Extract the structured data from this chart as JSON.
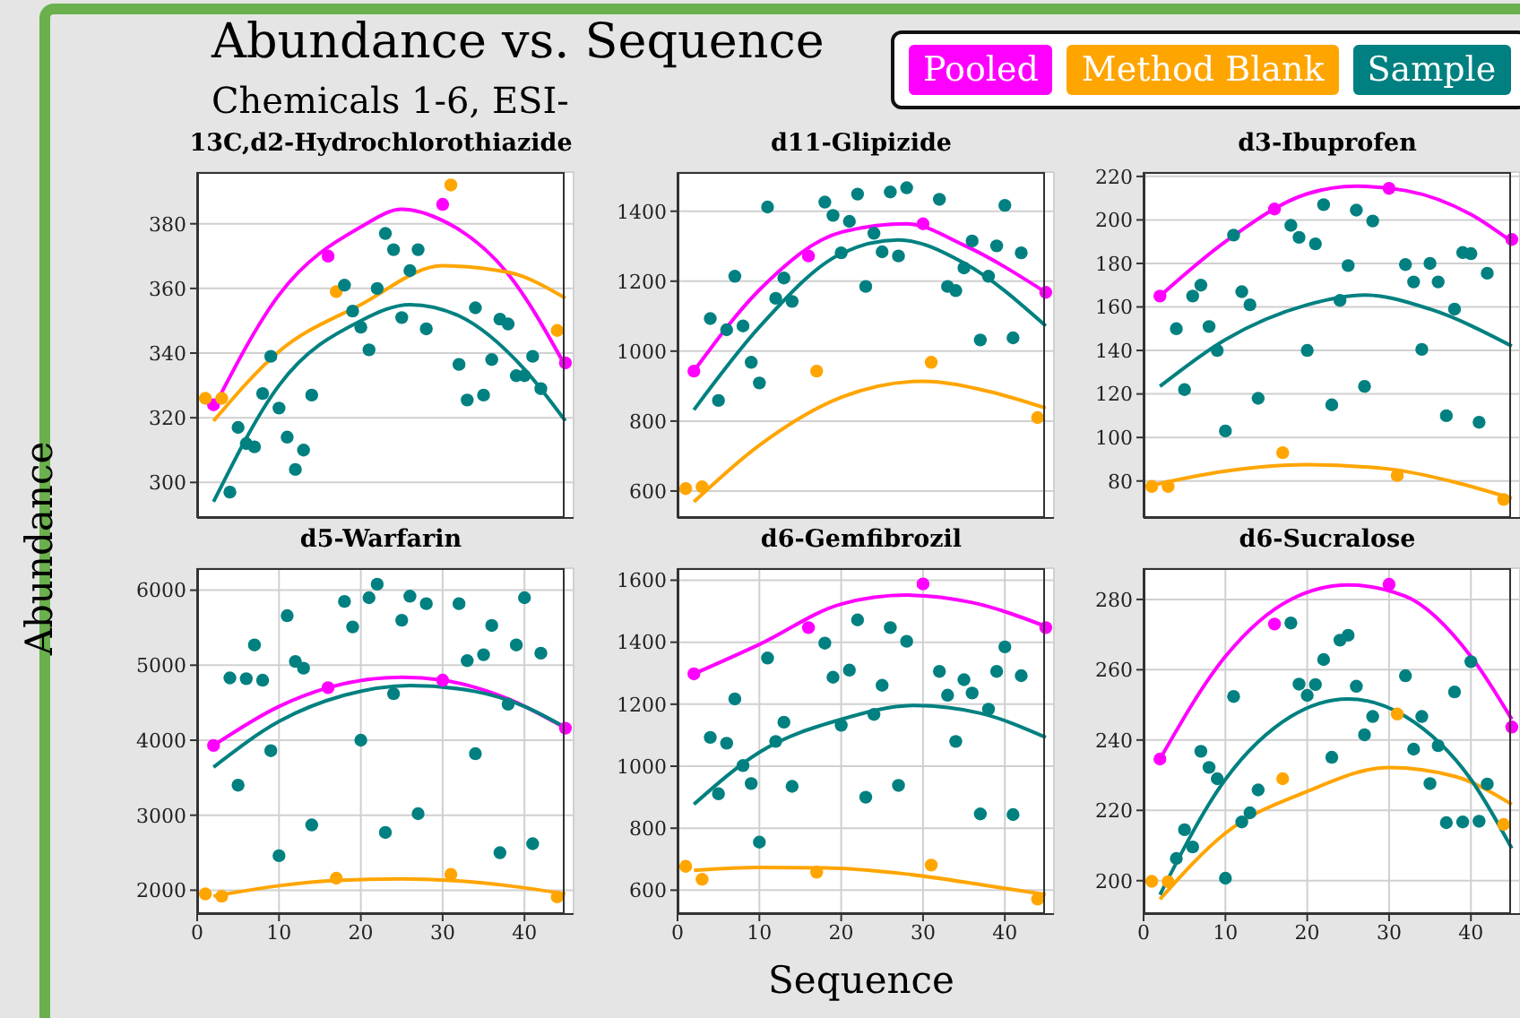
{
  "chart_data": [
    {
      "type": "scatter",
      "title": "13C,d2-Hydrochlorothiazide",
      "annotations": [
        "Abundance vs. Sequence",
        "Chemicals 1-6, ESI-"
      ],
      "xlim": [
        0,
        46
      ],
      "xticks": [
        0,
        10,
        20,
        30,
        40
      ],
      "ylim": [
        289,
        396
      ],
      "yticks": [
        300,
        320,
        340,
        360,
        380
      ],
      "grid": true,
      "tick_labels": "y",
      "series": [
        {
          "color": "#ff00ff",
          "marker": "circle",
          "x": [
            2,
            16,
            30,
            45
          ],
          "values": [
            324,
            370,
            386,
            337
          ]
        },
        {
          "color": "#ffa500",
          "marker": "circle",
          "x": [
            1,
            3,
            17,
            31,
            44
          ],
          "values": [
            326,
            326,
            359,
            392,
            347
          ]
        },
        {
          "color": "#008080",
          "marker": "circle",
          "x": [
            4,
            5,
            6,
            7,
            8,
            9,
            10,
            11,
            12,
            13,
            14,
            18,
            19,
            20,
            21,
            22,
            23,
            24,
            25,
            26,
            27,
            28,
            32,
            33,
            34,
            35,
            36,
            37,
            38,
            39,
            40,
            41,
            42
          ],
          "values": [
            297,
            317,
            312,
            311,
            327.5,
            339,
            323,
            314,
            304,
            310,
            327,
            361,
            353,
            348,
            341,
            360,
            377,
            372,
            351,
            365.5,
            372,
            347.5,
            336.5,
            325.5,
            354,
            327,
            338,
            350.5,
            349,
            333,
            333,
            339,
            329
          ]
        },
        {
          "type": "line",
          "color": "#ff00ff",
          "marker": "none",
          "x": [
            2,
            10,
            20,
            25,
            30,
            38,
            45
          ],
          "values": [
            323,
            358,
            379,
            384.5,
            381,
            364.5,
            336
          ]
        },
        {
          "type": "line",
          "color": "#ffa500",
          "marker": "none",
          "x": [
            2,
            10,
            20,
            30,
            38,
            45
          ],
          "values": [
            319,
            340.5,
            355,
            367,
            365,
            357
          ]
        },
        {
          "type": "line",
          "color": "#008080",
          "marker": "none",
          "x": [
            2,
            10,
            20,
            26,
            32,
            40,
            45
          ],
          "values": [
            294,
            330,
            350,
            355,
            351.5,
            335,
            319
          ]
        }
      ]
    },
    {
      "type": "scatter",
      "title": "d11-Glipizide",
      "xlim": [
        0,
        46
      ],
      "xticks": [
        0,
        10,
        20,
        30,
        40
      ],
      "ylim": [
        523,
        1512
      ],
      "yticks": [
        600,
        800,
        1000,
        1200,
        1400
      ],
      "grid": true,
      "tick_labels": "y",
      "series": [
        {
          "color": "#ff00ff",
          "marker": "circle",
          "x": [
            2,
            16,
            30,
            45
          ],
          "values": [
            943,
            1272,
            1364,
            1168
          ]
        },
        {
          "color": "#ffa500",
          "marker": "circle",
          "x": [
            1,
            3,
            17,
            31,
            44
          ],
          "values": [
            607,
            612,
            943,
            968,
            810
          ]
        },
        {
          "color": "#008080",
          "marker": "circle",
          "x": [
            4,
            5,
            6,
            7,
            8,
            9,
            10,
            11,
            12,
            13,
            14,
            18,
            19,
            20,
            21,
            22,
            23,
            24,
            25,
            26,
            27,
            28,
            32,
            33,
            34,
            35,
            36,
            37,
            38,
            39,
            40,
            41,
            42
          ],
          "values": [
            1093,
            859,
            1061,
            1214,
            1072,
            968,
            909,
            1412,
            1151,
            1209,
            1142,
            1426,
            1388,
            1281,
            1371,
            1449,
            1185,
            1337,
            1284,
            1455,
            1272,
            1467,
            1434,
            1185,
            1173,
            1238,
            1315,
            1032,
            1214,
            1301,
            1417,
            1038,
            1281
          ]
        },
        {
          "type": "line",
          "color": "#ff00ff",
          "marker": "none",
          "x": [
            2,
            10,
            20,
            28,
            35,
            45
          ],
          "values": [
            943,
            1175,
            1340,
            1364,
            1303,
            1168
          ]
        },
        {
          "type": "line",
          "color": "#ffa500",
          "marker": "none",
          "x": [
            2,
            10,
            20,
            30,
            38,
            45
          ],
          "values": [
            569,
            731,
            868,
            914,
            885,
            837
          ]
        },
        {
          "type": "line",
          "color": "#008080",
          "marker": "none",
          "x": [
            2,
            10,
            20,
            27,
            35,
            45
          ],
          "values": [
            832,
            1069,
            1279,
            1318,
            1252,
            1072
          ]
        }
      ]
    },
    {
      "type": "scatter",
      "title": "d3-Ibuprofen",
      "legend": "top",
      "xlim": [
        0,
        46
      ],
      "xticks": [
        0,
        10,
        20,
        30,
        40
      ],
      "ylim": [
        63,
        222
      ],
      "yticks": [
        80,
        100,
        120,
        140,
        160,
        180,
        200,
        220
      ],
      "grid": true,
      "tick_labels": "y",
      "series": [
        {
          "name": "Pooled",
          "color": "#ff00ff",
          "marker": "circle",
          "x": [
            2,
            16,
            30,
            45
          ],
          "values": [
            165,
            205,
            214.5,
            191
          ]
        },
        {
          "name": "Method Blank",
          "color": "#ffa500",
          "marker": "circle",
          "x": [
            1,
            3,
            17,
            31,
            44
          ],
          "values": [
            77.5,
            77.5,
            93,
            82.5,
            71.5
          ]
        },
        {
          "name": "Sample",
          "color": "#008080",
          "marker": "circle",
          "x": [
            4,
            5,
            6,
            7,
            8,
            9,
            10,
            11,
            12,
            13,
            14,
            18,
            19,
            20,
            21,
            22,
            23,
            24,
            25,
            26,
            27,
            28,
            32,
            33,
            34,
            35,
            36,
            37,
            38,
            39,
            40,
            41,
            42
          ],
          "values": [
            150,
            122,
            165,
            170,
            151,
            140,
            103,
            193,
            167,
            161,
            118,
            197.5,
            192,
            140,
            189,
            207,
            115,
            163,
            179,
            204.5,
            123.5,
            199.5,
            179.5,
            171.5,
            140.5,
            180,
            171.5,
            110,
            159,
            185,
            184.5,
            107,
            175.5
          ]
        },
        {
          "type": "line",
          "color": "#ff00ff",
          "marker": "none",
          "x": [
            2,
            10,
            20,
            26,
            32,
            40,
            45
          ],
          "values": [
            165,
            190,
            212,
            215.5,
            213.5,
            202.5,
            190
          ]
        },
        {
          "type": "line",
          "color": "#ffa500",
          "marker": "none",
          "x": [
            1,
            10,
            20,
            30,
            38,
            45
          ],
          "values": [
            78,
            84.5,
            87.5,
            85.5,
            79.5,
            72
          ]
        },
        {
          "type": "line",
          "color": "#008080",
          "marker": "none",
          "x": [
            2,
            10,
            20,
            27,
            35,
            45
          ],
          "values": [
            123.5,
            145,
            161,
            165.5,
            159,
            142
          ]
        }
      ]
    },
    {
      "type": "scatter",
      "title": "d5-Warfarin",
      "ylabel": "Abundance",
      "xlim": [
        0,
        46
      ],
      "xticks": [
        0,
        10,
        20,
        30,
        40
      ],
      "ylim": [
        1682,
        6294
      ],
      "yticks": [
        2000,
        3000,
        4000,
        5000,
        6000
      ],
      "grid": true,
      "series": [
        {
          "color": "#ff00ff",
          "marker": "circle",
          "x": [
            2,
            16,
            30,
            45
          ],
          "values": [
            3930,
            4700,
            4800,
            4160
          ]
        },
        {
          "color": "#ffa500",
          "marker": "circle",
          "x": [
            1,
            3,
            17,
            31,
            44
          ],
          "values": [
            1950,
            1920,
            2160,
            2210,
            1910
          ]
        },
        {
          "color": "#008080",
          "marker": "circle",
          "x": [
            4,
            5,
            6,
            7,
            8,
            9,
            10,
            11,
            12,
            13,
            14,
            18,
            19,
            20,
            21,
            22,
            23,
            24,
            25,
            26,
            27,
            28,
            32,
            33,
            34,
            35,
            36,
            37,
            38,
            39,
            40,
            41,
            42
          ],
          "values": [
            4830,
            3400,
            4820,
            5270,
            4800,
            3860,
            2460,
            5660,
            5050,
            4960,
            2870,
            5850,
            5510,
            4000,
            5900,
            6080,
            2770,
            4620,
            5600,
            5920,
            3020,
            5820,
            5820,
            5060,
            3820,
            5140,
            5530,
            2500,
            4480,
            5270,
            5900,
            2620,
            5160
          ]
        },
        {
          "type": "line",
          "color": "#ff00ff",
          "marker": "none",
          "x": [
            2,
            10,
            16,
            25,
            30,
            38,
            45
          ],
          "values": [
            3930,
            4450,
            4700,
            4840,
            4800,
            4550,
            4160
          ]
        },
        {
          "type": "line",
          "color": "#ffa500",
          "marker": "none",
          "x": [
            2,
            10,
            17,
            25,
            31,
            38,
            45
          ],
          "values": [
            1920,
            2060,
            2130,
            2150,
            2130,
            2060,
            1950
          ]
        },
        {
          "type": "line",
          "color": "#008080",
          "marker": "none",
          "x": [
            2,
            10,
            18,
            26,
            34,
            40,
            45
          ],
          "values": [
            3640,
            4250,
            4600,
            4730,
            4650,
            4450,
            4170
          ]
        }
      ]
    },
    {
      "type": "scatter",
      "title": "d6-Gemfibrozil",
      "xlabel": "Sequence",
      "xlim": [
        0,
        46
      ],
      "xticks": [
        0,
        10,
        20,
        30,
        40
      ],
      "ylim": [
        523,
        1639
      ],
      "yticks": [
        600,
        800,
        1000,
        1200,
        1400,
        1600
      ],
      "grid": true,
      "series": [
        {
          "color": "#ff00ff",
          "marker": "circle",
          "x": [
            2,
            16,
            30,
            45
          ],
          "values": [
            1298,
            1447,
            1588,
            1447
          ]
        },
        {
          "color": "#ffa500",
          "marker": "circle",
          "x": [
            1,
            3,
            17,
            31,
            44
          ],
          "values": [
            677,
            635,
            658,
            681,
            571
          ]
        },
        {
          "color": "#008080",
          "marker": "circle",
          "x": [
            4,
            5,
            6,
            7,
            8,
            9,
            10,
            11,
            12,
            13,
            14,
            18,
            19,
            20,
            21,
            22,
            23,
            24,
            25,
            26,
            27,
            28,
            32,
            33,
            34,
            35,
            36,
            37,
            38,
            39,
            40,
            41,
            42
          ],
          "values": [
            1093,
            911,
            1074,
            1217,
            1002,
            944,
            755,
            1349,
            1080,
            1142,
            935,
            1397,
            1287,
            1132,
            1310,
            1472,
            900,
            1167,
            1261,
            1447,
            938,
            1403,
            1306,
            1229,
            1080,
            1279,
            1236,
            846,
            1184,
            1306,
            1385,
            844,
            1292
          ]
        },
        {
          "type": "line",
          "color": "#ff00ff",
          "marker": "none",
          "x": [
            2,
            10,
            20,
            28,
            36,
            45
          ],
          "values": [
            1298,
            1393,
            1523,
            1552,
            1528,
            1451
          ]
        },
        {
          "type": "line",
          "color": "#ffa500",
          "marker": "none",
          "x": [
            2,
            10,
            18,
            28,
            38,
            45
          ],
          "values": [
            664,
            673,
            672,
            652,
            614,
            586
          ]
        },
        {
          "type": "line",
          "color": "#008080",
          "marker": "none",
          "x": [
            2,
            10,
            20,
            29,
            37,
            45
          ],
          "values": [
            877,
            1045,
            1151,
            1196,
            1171,
            1093
          ]
        }
      ]
    },
    {
      "type": "scatter",
      "title": "d6-Sucralose",
      "xlim": [
        0,
        46
      ],
      "xticks": [
        0,
        10,
        20,
        30,
        40
      ],
      "ylim": [
        190.5,
        288.9
      ],
      "yticks": [
        200,
        220,
        240,
        260,
        280
      ],
      "grid": true,
      "series": [
        {
          "color": "#ff00ff",
          "marker": "circle",
          "x": [
            2,
            16,
            30,
            45
          ],
          "values": [
            234.6,
            273,
            284.3,
            243.7
          ]
        },
        {
          "color": "#ffa500",
          "marker": "circle",
          "x": [
            1,
            3,
            17,
            31,
            44
          ],
          "values": [
            199.8,
            199.7,
            229,
            247.4,
            216
          ]
        },
        {
          "color": "#008080",
          "marker": "circle",
          "x": [
            4,
            5,
            6,
            7,
            8,
            9,
            10,
            11,
            12,
            13,
            14,
            18,
            19,
            20,
            21,
            22,
            23,
            24,
            25,
            26,
            27,
            28,
            32,
            33,
            34,
            35,
            36,
            37,
            38,
            39,
            40,
            41,
            42
          ],
          "values": [
            206.3,
            214.5,
            209.6,
            236.8,
            232.2,
            229,
            200.7,
            252.4,
            216.7,
            219.3,
            225.8,
            273.3,
            255.9,
            252.7,
            255.8,
            262.9,
            235.1,
            268.4,
            269.8,
            255.3,
            241.5,
            246.7,
            258.3,
            237.4,
            246.7,
            227.6,
            238.4,
            216.5,
            253.7,
            216.7,
            262.3,
            216.9,
            227.5
          ]
        },
        {
          "type": "line",
          "color": "#ff00ff",
          "marker": "none",
          "x": [
            2,
            10,
            18,
            25,
            32,
            40,
            45
          ],
          "values": [
            234.6,
            263.8,
            280,
            284.1,
            280.9,
            263.8,
            245.9
          ]
        },
        {
          "type": "line",
          "color": "#ffa500",
          "marker": "none",
          "x": [
            2,
            10,
            20,
            30,
            38,
            45
          ],
          "values": [
            194.7,
            213.5,
            225.4,
            232.2,
            229.7,
            221.7
          ]
        },
        {
          "type": "line",
          "color": "#008080",
          "marker": "none",
          "x": [
            2,
            10,
            18,
            25,
            32,
            40,
            45
          ],
          "values": [
            196,
            228.8,
            246.7,
            251.7,
            246.7,
            228.8,
            209.2
          ]
        }
      ]
    }
  ]
}
